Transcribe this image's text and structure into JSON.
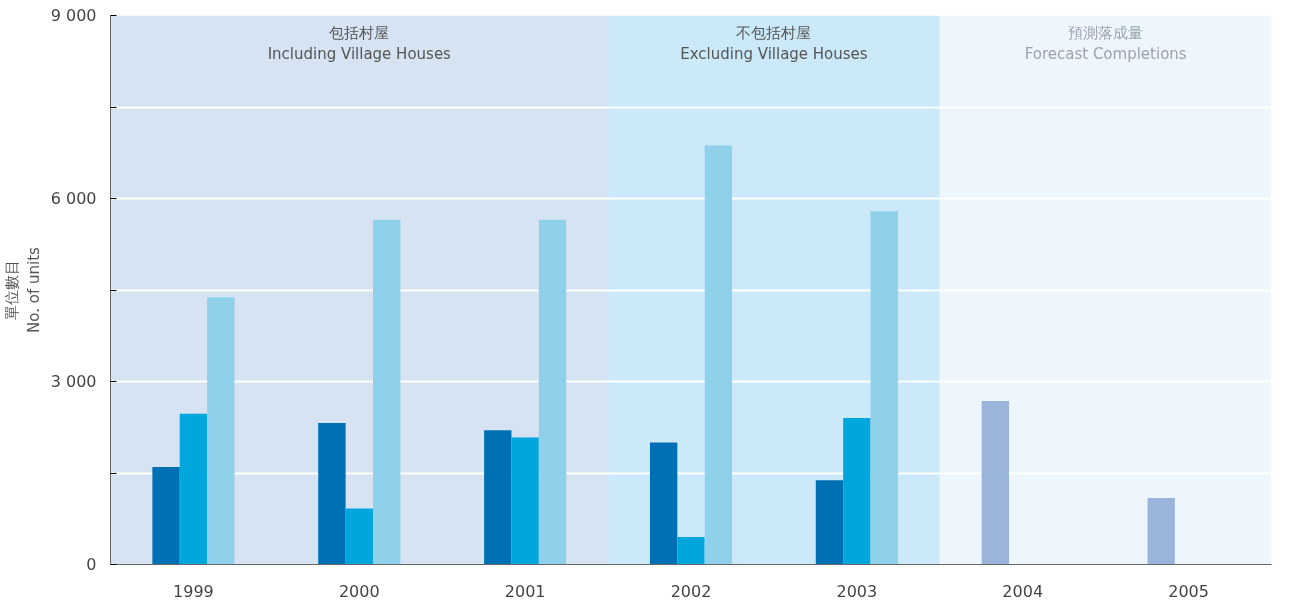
{
  "chart_data": {
    "type": "bar",
    "ylabel": "單位數目\nNo. of units",
    "categories": [
      "1999",
      "2000",
      "2001",
      "2002",
      "2003",
      "2004",
      "2005"
    ],
    "series": [
      {
        "color": "#0070b5",
        "colors": [
          "#0070b5",
          "#0070b5",
          "#0070b5",
          "#0070b5",
          "#0070b5",
          "#9bb5da",
          "#9bb5da"
        ],
        "values": [
          1600,
          2320,
          2200,
          2000,
          1380,
          2680,
          1090
        ]
      },
      {
        "color": "#00a6dc",
        "values": [
          2470,
          920,
          2080,
          450,
          2400,
          null,
          null
        ]
      },
      {
        "color": "#8fd0ea",
        "values": [
          4380,
          5650,
          5650,
          6870,
          5790,
          null,
          null
        ]
      }
    ],
    "ylim": [
      0,
      9000
    ],
    "yticks": [
      0,
      {
        "value": 1500,
        "label": null
      },
      {
        "value": 3000,
        "label": "3 000"
      },
      {
        "value": 4500,
        "label": null
      },
      {
        "value": 6000,
        "label": "6 000"
      },
      {
        "value": 7500,
        "label": null
      },
      {
        "value": 9000,
        "label": "9 000"
      }
    ],
    "grid": "y",
    "bands": [
      {
        "axis": "x",
        "from": "1999",
        "to": "2001",
        "label": "包括村屋\nIncluding Village Houses",
        "color": "#d6e3f2"
      },
      {
        "axis": "x",
        "from": "2002",
        "to": "2003",
        "label": "不包括村屋\nExcluding Village Houses",
        "color": "#cbe9f9"
      },
      {
        "axis": "x",
        "from": "2004",
        "to": "2005",
        "label": "預測落成量\nForecast Completions",
        "color": "#ecf6fc"
      }
    ]
  }
}
